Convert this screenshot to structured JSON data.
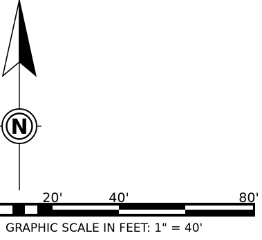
{
  "north_arrow": {
    "letter": "N"
  },
  "scale_bar": {
    "tick_labels": [
      "20'",
      "40'",
      "80'"
    ],
    "caption": "GRAPHIC SCALE IN FEET: 1\" = 40'"
  }
}
